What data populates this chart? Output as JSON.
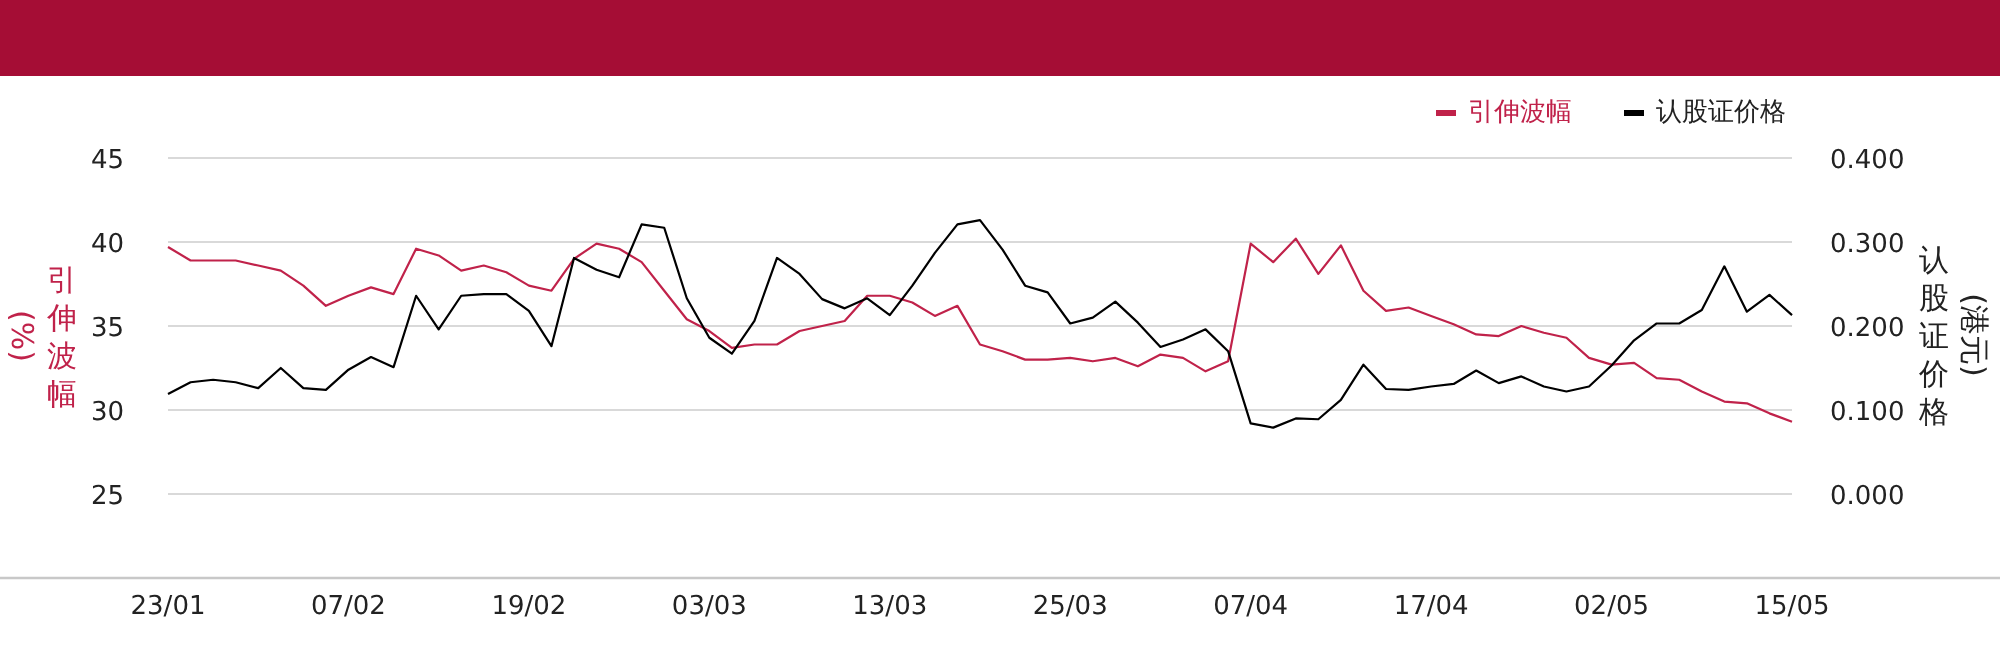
{
  "chart_data": {
    "type": "line",
    "categories": [
      "23/01",
      null,
      null,
      null,
      null,
      null,
      null,
      null,
      "07/02",
      null,
      null,
      null,
      null,
      null,
      null,
      null,
      "19/02",
      null,
      null,
      null,
      null,
      null,
      null,
      null,
      "03/03",
      null,
      null,
      null,
      null,
      null,
      null,
      null,
      "13/03",
      null,
      null,
      null,
      null,
      null,
      null,
      null,
      "25/03",
      null,
      null,
      null,
      null,
      null,
      null,
      null,
      "07/04",
      null,
      null,
      null,
      null,
      null,
      null,
      null,
      "17/04",
      null,
      null,
      null,
      null,
      null,
      null,
      null,
      "02/05",
      null,
      null,
      null,
      null,
      null,
      null,
      null,
      "15/05"
    ],
    "series": [
      {
        "name": "引伸波幅",
        "color": "#c0224a",
        "values": [
          39.7,
          38.9,
          38.9,
          38.9,
          38.6,
          38.3,
          37.4,
          36.2,
          36.8,
          37.3,
          36.9,
          39.6,
          39.2,
          38.3,
          38.6,
          38.2,
          37.4,
          37.1,
          39.0,
          39.9,
          39.6,
          38.8,
          37.1,
          35.4,
          34.7,
          33.7,
          33.9,
          33.9,
          34.7,
          35.0,
          35.3,
          36.8,
          36.8,
          36.4,
          35.6,
          36.2,
          33.9,
          33.5,
          33.0,
          33.0,
          33.1,
          32.9,
          33.1,
          32.6,
          33.3,
          33.1,
          32.3,
          32.9,
          39.9,
          38.8,
          40.2,
          38.1,
          39.8,
          37.1,
          35.9,
          36.1,
          35.6,
          35.1,
          34.5,
          34.4,
          35.0,
          34.6,
          34.3,
          33.1,
          32.7,
          32.8,
          31.9,
          31.8,
          31.1,
          30.5,
          30.4,
          29.8,
          29.3
        ]
      },
      {
        "name": "认股证价格",
        "color": "#000000",
        "axis": "y2",
        "values": [
          0.119,
          0.133,
          0.136,
          0.133,
          0.126,
          0.15,
          0.126,
          0.124,
          0.148,
          0.163,
          0.151,
          0.236,
          0.196,
          0.236,
          0.238,
          0.238,
          0.218,
          0.176,
          0.281,
          0.267,
          0.258,
          0.321,
          0.317,
          0.233,
          0.186,
          0.167,
          0.206,
          0.281,
          0.262,
          0.232,
          0.221,
          0.233,
          0.213,
          0.248,
          0.287,
          0.321,
          0.326,
          0.291,
          0.248,
          0.24,
          0.203,
          0.21,
          0.229,
          0.204,
          0.175,
          0.184,
          0.196,
          0.17,
          0.084,
          0.079,
          0.09,
          0.089,
          0.112,
          0.154,
          0.125,
          0.124,
          0.128,
          0.131,
          0.147,
          0.132,
          0.14,
          0.128,
          0.122,
          0.128,
          0.153,
          0.183,
          0.203,
          0.203,
          0.219,
          0.271,
          0.217,
          0.237,
          0.213
        ]
      }
    ],
    "ylabel": "引伸波幅(%)",
    "y2label": "认股证价格(港元)",
    "ylim": [
      20,
      45
    ],
    "yticks": [
      25,
      30,
      35,
      40,
      45
    ],
    "y2lim": [
      -0.1,
      0.4
    ],
    "y2ticks": [
      {
        "value": 0,
        "label": "0.000"
      },
      {
        "value": 0.1,
        "label": "0.100"
      },
      {
        "value": 0.2,
        "label": "0.200"
      },
      {
        "value": 0.3,
        "label": "0.300"
      },
      {
        "value": 0.4,
        "label": "0.400"
      }
    ],
    "grid": "y",
    "legend": "top right"
  }
}
